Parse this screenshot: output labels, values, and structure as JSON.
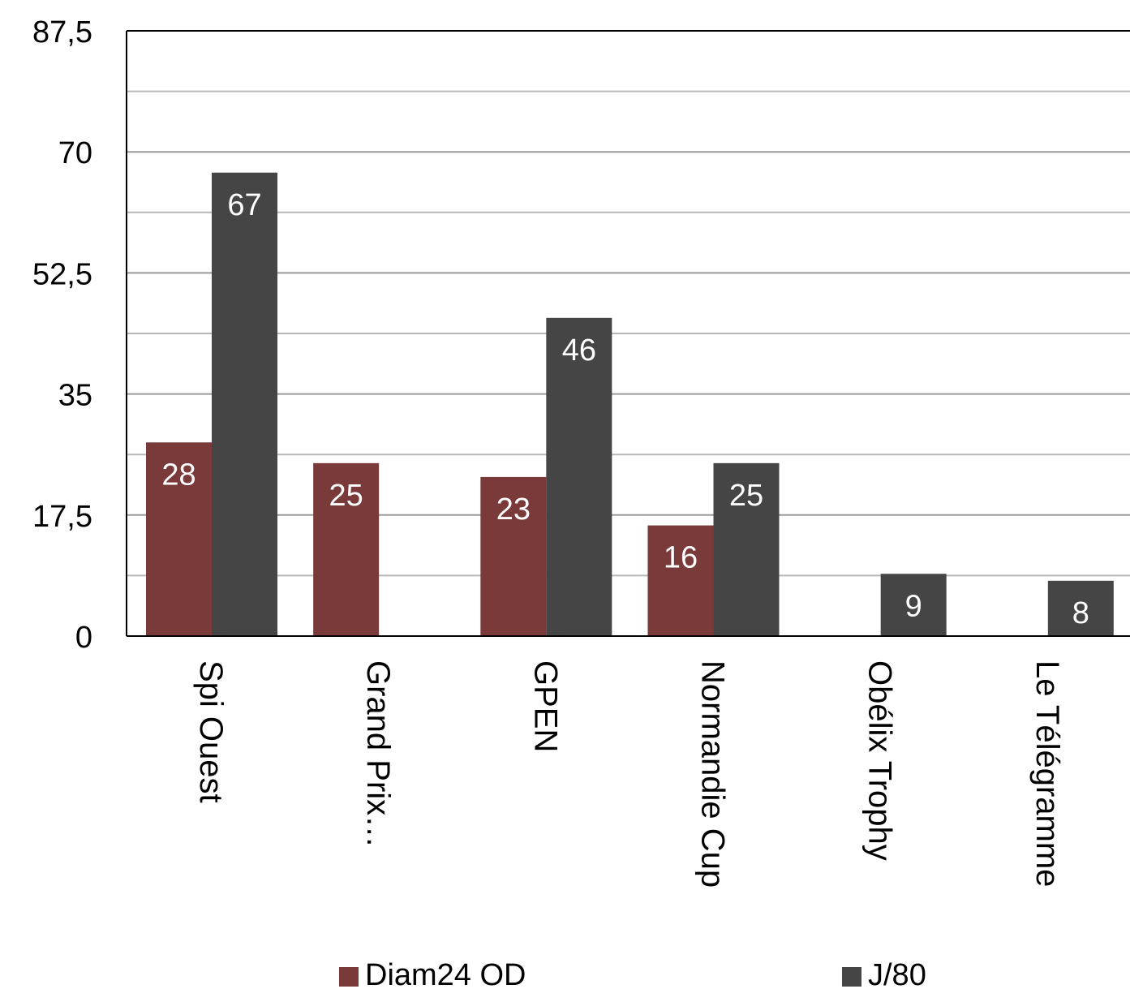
{
  "chart_data": {
    "type": "bar",
    "categories": [
      "Spi Ouest",
      "Grand Prix…",
      "GPEN",
      "Normandie Cup",
      "Obélix Trophy",
      "Le Télégramme"
    ],
    "series": [
      {
        "name": "Diam24 OD",
        "values": [
          28,
          25,
          23,
          16,
          null,
          null
        ],
        "color": "#7b3a3a"
      },
      {
        "name": "J/80",
        "values": [
          67,
          null,
          46,
          25,
          9,
          8
        ],
        "color": "#454545"
      }
    ],
    "y_ticks": [
      "0",
      "17,5",
      "35",
      "52,5",
      "70",
      "87,5"
    ],
    "ylim": [
      0,
      87.5
    ],
    "major_step": 17.5,
    "minor_step": 8.75,
    "grid": true,
    "legend_position": "bottom"
  }
}
